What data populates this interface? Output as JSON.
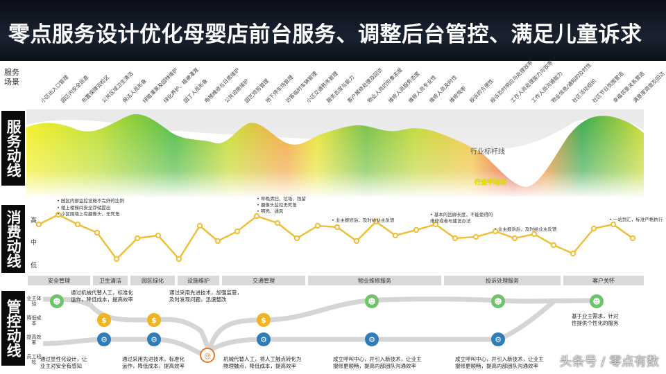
{
  "header": {
    "title": "零点服务设计优化母婴店前台服务、调整后台管控、满足儿童诉求"
  },
  "labels": {
    "scene": "服务场景",
    "service_flow": "服务动线",
    "consume_flow": "消费动线",
    "control_flow": "管控动线"
  },
  "scenes": [
    "小区出入口管理",
    "园区内安全巡查",
    "布置保障安检区",
    "公共区域卫生清洁",
    "保洁人员形象",
    "绿植灌溉及园林维护",
    "绿化养护、植被灌溉",
    "园丁人员形象",
    "电梯维修与日常维护",
    "公共设施维护",
    "园艺修剪管理",
    "地下停车场管理",
    "访客临时车辆管理",
    "小区交通秩序管理",
    "服务态度与能力",
    "客户报修处理及回访",
    "物业人员的形象态度",
    "维修人员服务态度",
    "维修人员专业性",
    "维修人员及时性",
    "维修效率",
    "投诉的方便性",
    "投诉及时响应与处理效率",
    "工作人员处理能力与效率",
    "工作人员沟通能力",
    "物业信息/通知的及时性",
    "社区活动组织",
    "社区节日氛围营造",
    "幸福邻里关系营造",
    "满意度调查及回访"
  ],
  "service_chart": {
    "benchmark_label": "行业标杆线",
    "average_label": "行业平均线"
  },
  "consume": {
    "levels": [
      "高",
      "中",
      "低"
    ],
    "notes": [
      "• 园区内部监控设施不完好的比例",
      "• 楼上楼梯间安全存储提出",
      "• 小区围墙上有摄像头，无死角",
      "• 早晚清扫、垃圾、残留",
      "• 摄像头监控无死角",
      "• 明亮、通风",
      "• 业主报修后，及时给业主反馈",
      "• 基本的回廊长度，不能使得的",
      "  维修或者与建设办法",
      "• 业主报诉后，及时给业主反馈",
      "• 一站到汇，标准严格执行"
    ]
  },
  "categories": [
    "安全管理",
    "卫生清洁",
    "园区绿化",
    "设施维护",
    "交通管理",
    "物业维修服务",
    "投诉处理服务",
    "客户关怀"
  ],
  "control": {
    "side_labels": [
      "业主体验",
      "降低成本",
      "提高效率",
      "员工轻松"
    ],
    "notes": [
      "通过机械代替人工，标准化\n运作，降低成本，提高效率",
      "通过采用先进技术，加强监管，\n及时发现问题，迅速整改",
      "通过显性化设计，让\n业主对安全有感知",
      "通过采用先进技术，标准化\n运作，降低成本，提高效率",
      "机械代替人工，将人工触点转化为\n物理触点，降低成本，提高效率",
      "成立呼叫中心，并引入新技术，让业主\n报修更顺畅，提高内部团队沟通效率",
      "成立呼叫中心，并引入新技术，让业主\n报修更顺畅，提高内部团队沟通效率",
      "基于业主需求，针对\n性提供个性化的服务"
    ]
  },
  "watermark": "头条号 / 零点有数"
}
